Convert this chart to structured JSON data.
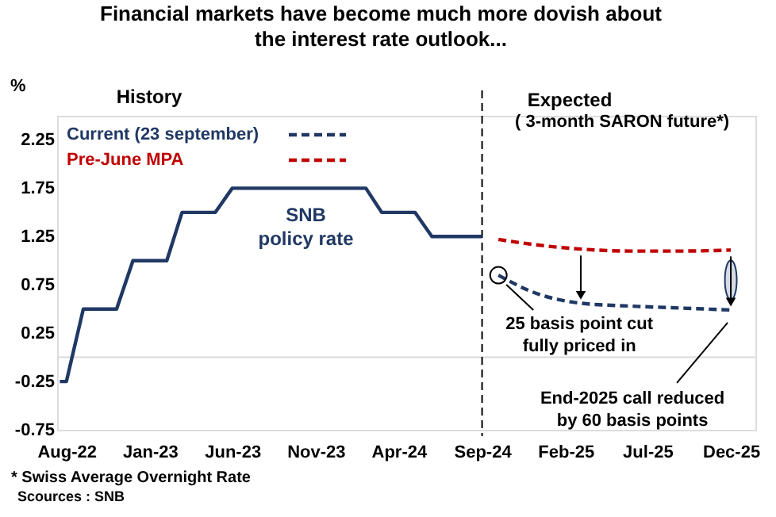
{
  "chart_data": {
    "type": "line",
    "title": "Financial markets have become much more dovish about the interest rate outlook...",
    "ylabel": "%",
    "xlim": [
      "2022-07-15",
      "2026-01-15"
    ],
    "xticks": [
      {
        "value": "2022-08",
        "label": "Aug-22"
      },
      {
        "value": "2023-01",
        "label": "Jan-23"
      },
      {
        "value": "2023-06",
        "label": "Jun-23"
      },
      {
        "value": "2023-11",
        "label": "Nov-23"
      },
      {
        "value": "2024-04",
        "label": "Apr-24"
      },
      {
        "value": "2024-09",
        "label": "Sep-24"
      },
      {
        "value": "2025-02",
        "label": "Feb-25"
      },
      {
        "value": "2025-07",
        "label": "Jul-25"
      },
      {
        "value": "2025-12",
        "label": "Dec-25"
      }
    ],
    "ylim": [
      -0.75,
      2.5
    ],
    "yticks": [
      -0.75,
      -0.25,
      0.25,
      0.75,
      1.25,
      1.75,
      2.25
    ],
    "legend": "top left",
    "series": [
      {
        "name": "SNB policy rate",
        "line_style": "solid",
        "color": "#203864",
        "x": [
          "2022-07-20",
          "2022-08",
          "2022-09",
          "2022-11",
          "2022-12",
          "2023-02",
          "2023-03",
          "2023-05",
          "2023-06",
          "2024-02",
          "2024-03",
          "2024-05",
          "2024-06",
          "2024-09"
        ],
        "values": [
          -0.25,
          -0.25,
          0.5,
          0.5,
          1.0,
          1.0,
          1.5,
          1.5,
          1.75,
          1.75,
          1.5,
          1.5,
          1.25,
          1.25
        ]
      },
      {
        "name": "Current (23 september)",
        "line_style": "dashed",
        "color": "#203864",
        "x": [
          "2024-10",
          "2024-12",
          "2025-03",
          "2025-06",
          "2025-09",
          "2025-12"
        ],
        "values": [
          0.85,
          0.68,
          0.56,
          0.53,
          0.51,
          0.49
        ]
      },
      {
        "name": "Pre-June MPA",
        "line_style": "dashed",
        "color": "#c00000",
        "x": [
          "2024-10",
          "2024-12",
          "2025-03",
          "2025-06",
          "2025-09",
          "2025-12"
        ],
        "values": [
          1.22,
          1.17,
          1.12,
          1.1,
          1.1,
          1.11
        ]
      }
    ],
    "ref_lines": [
      {
        "axis": "y",
        "value": 0,
        "color": "#d9d9d9",
        "line_style": "solid"
      },
      {
        "axis": "x",
        "value": "2024-09",
        "color": "#000000",
        "line_style": "dashed"
      }
    ],
    "annotations": [
      "History",
      "Expected",
      "( 3-month SARON future*)",
      {
        "text": "25 basis point cut fully priced in",
        "x": "2024-10",
        "y": 0.85
      },
      {
        "text": "End-2025 call reduced by 60 basis points",
        "x": "2025-12",
        "y": 0.49
      },
      "* Swiss Average Overnight Rate",
      "Scources : SNB"
    ]
  }
}
